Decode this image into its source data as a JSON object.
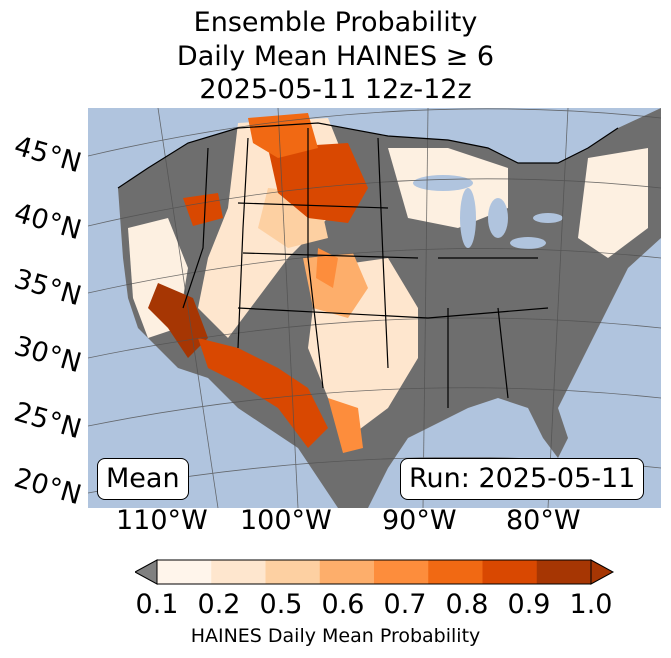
{
  "title": {
    "line1": "Ensemble Probability",
    "line2": "Daily Mean HAINES ≥ 6",
    "line3": "2025-05-11 12z-12z"
  },
  "map": {
    "latitude_labels": [
      "45°N",
      "40°N",
      "35°N",
      "30°N",
      "25°N",
      "20°N"
    ],
    "longitude_labels": [
      "110°W",
      "100°W",
      "90°W",
      "80°W"
    ],
    "colors": {
      "ocean": "#b0c4de",
      "land_missing": "#6e6e6e",
      "low": "#fdf0e1"
    },
    "mean_label": "Mean",
    "run_label": "Run: 2025-05-11"
  },
  "colorbar": {
    "ticks": [
      "0.1",
      "0.2",
      "0.5",
      "0.6",
      "0.7",
      "0.8",
      "0.9",
      "1.0"
    ],
    "colors": [
      "#fff5eb",
      "#fee6ce",
      "#fdd0a2",
      "#fdae6b",
      "#fd8d3c",
      "#f16913",
      "#d94801",
      "#a63603"
    ],
    "under_color": "#808080",
    "label": "HAINES Daily Mean Probability"
  }
}
